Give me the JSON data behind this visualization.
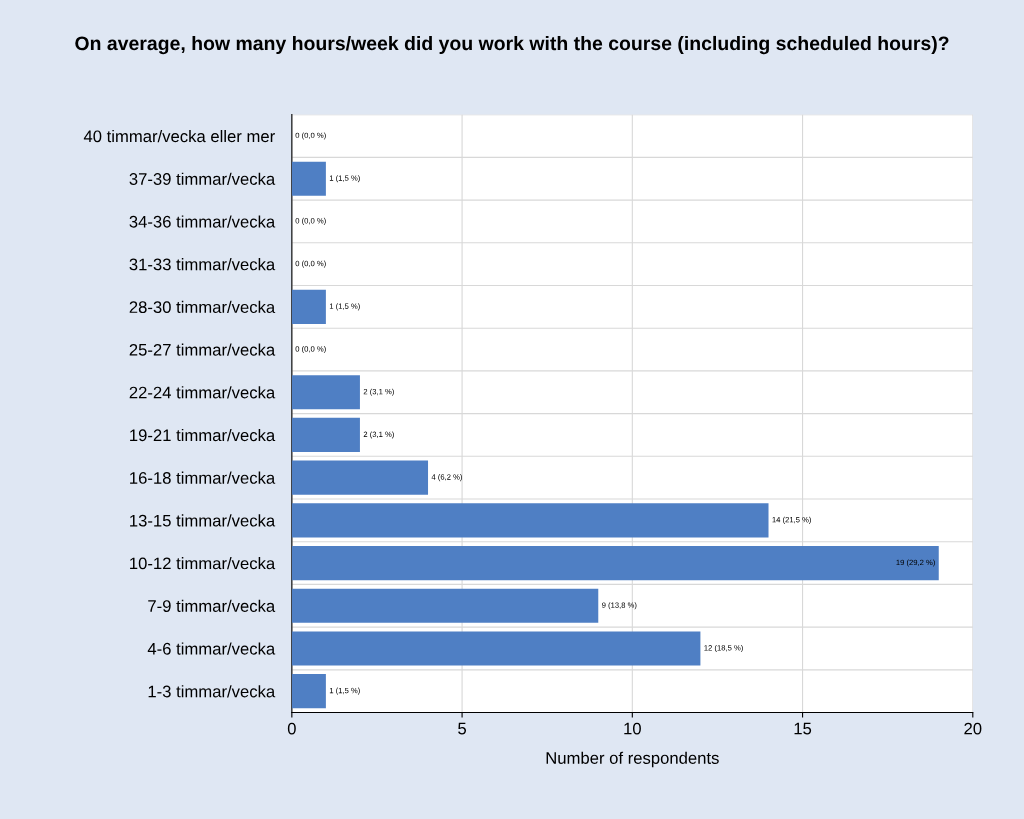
{
  "chart_data": {
    "type": "bar",
    "orientation": "horizontal",
    "title": "On average, how many hours/week did you work with the course (including scheduled hours)?",
    "xlabel": "Number of respondents",
    "categories": [
      "40 timmar/vecka eller mer",
      "37-39 timmar/vecka",
      "34-36 timmar/vecka",
      "31-33 timmar/vecka",
      "28-30 timmar/vecka",
      "25-27 timmar/vecka",
      "22-24 timmar/vecka",
      "19-21 timmar/vecka",
      "16-18 timmar/vecka",
      "13-15 timmar/vecka",
      "10-12 timmar/vecka",
      "7-9 timmar/vecka",
      "4-6 timmar/vecka",
      "1-3 timmar/vecka"
    ],
    "values": [
      0,
      1,
      0,
      0,
      1,
      0,
      2,
      2,
      4,
      14,
      19,
      9,
      12,
      1
    ],
    "value_labels": [
      "0 (0,0 %)",
      "1 (1,5 %)",
      "0 (0,0 %)",
      "0 (0,0 %)",
      "1 (1,5 %)",
      "0 (0,0 %)",
      "2 (3,1 %)",
      "2 (3,1 %)",
      "4 (6,2 %)",
      "14 (21,5 %)",
      "19 (29,2 %)",
      "9 (13,8 %)",
      "12 (18,5 %)",
      "1 (1,5 %)"
    ],
    "color": "#4f7fc4",
    "xlim": [
      0,
      20
    ],
    "xticks": [
      0,
      5,
      10,
      15,
      20
    ],
    "grid": true
  }
}
